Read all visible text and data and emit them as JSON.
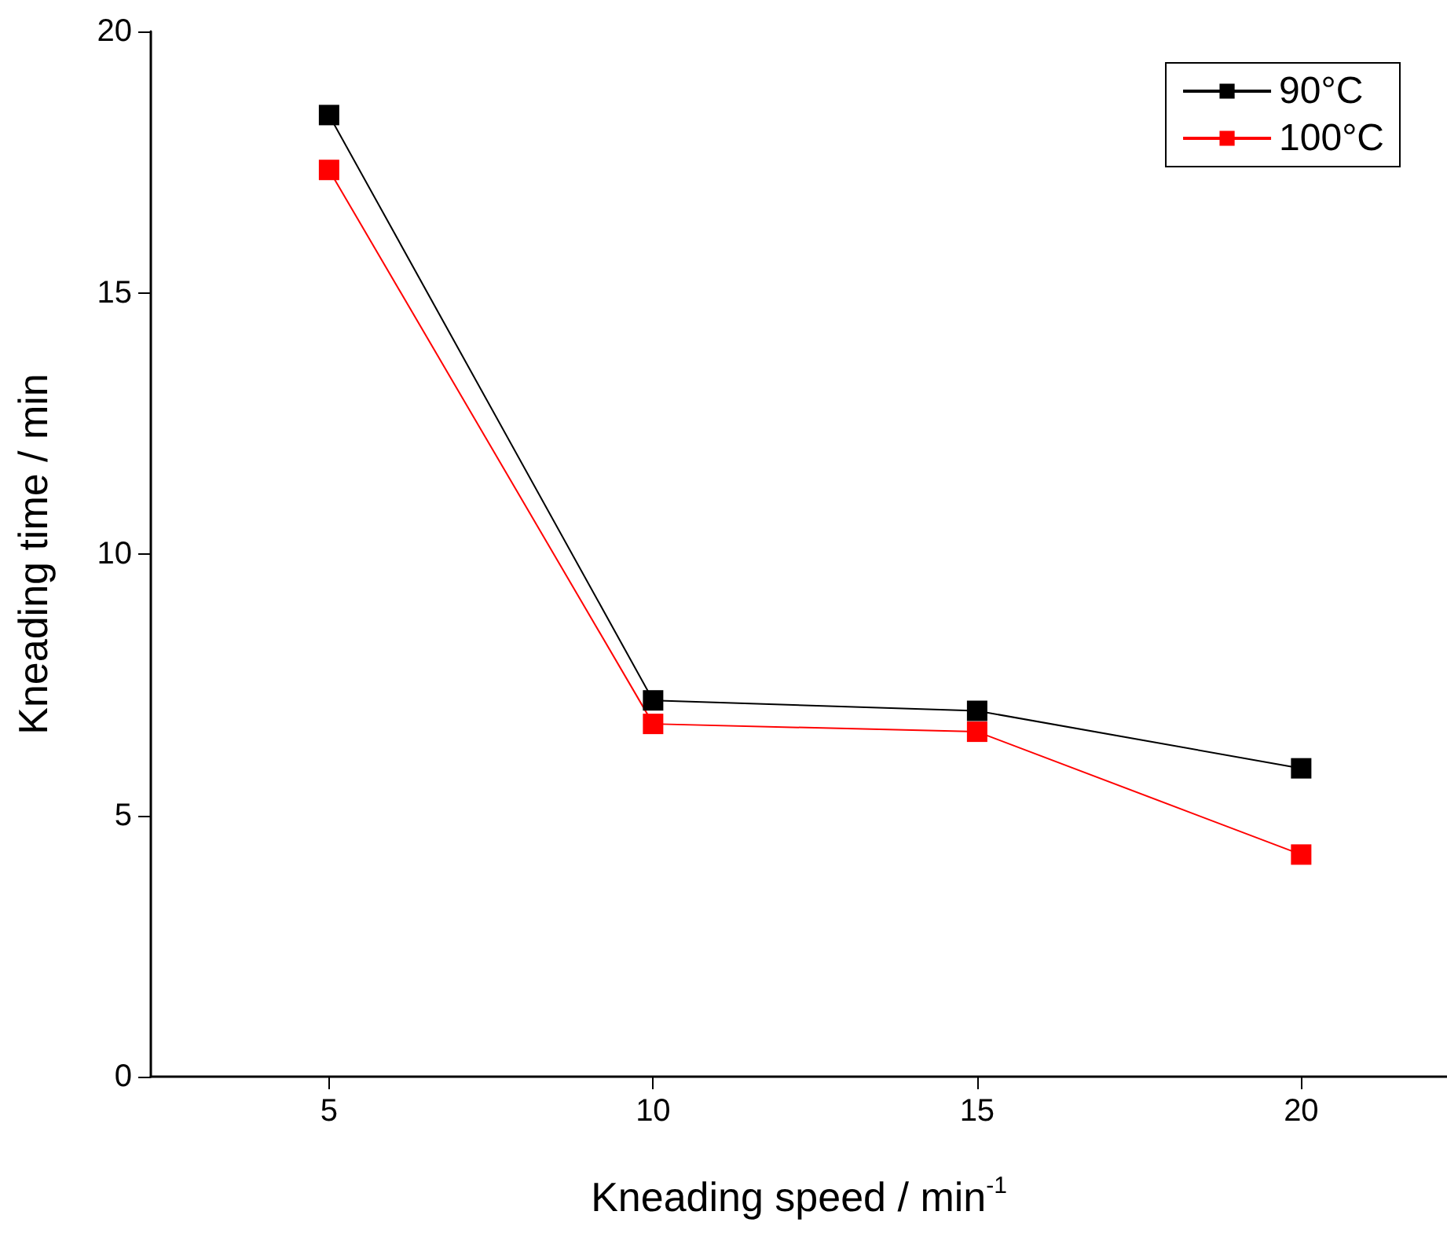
{
  "chart_data": {
    "type": "line",
    "xlabel": "Kneading speed / min$^{-1}$",
    "ylabel": "Kneading time / min",
    "x": [
      5,
      10,
      15,
      20
    ],
    "series": [
      {
        "name": "90°C",
        "color": "#000000",
        "values": [
          18.4,
          7.2,
          7.0,
          5.9
        ]
      },
      {
        "name": "100°C",
        "color": "#ff0000",
        "values": [
          17.35,
          6.75,
          6.6,
          4.25
        ]
      }
    ],
    "xlim": [
      2.25,
      22.25
    ],
    "xticks": [
      5,
      10,
      15,
      20
    ],
    "ylim": [
      0,
      20
    ],
    "yticks": [
      0,
      5,
      10,
      15,
      20
    ],
    "grid": false,
    "legend": "top right",
    "marker": "square",
    "line_style": "solid"
  }
}
